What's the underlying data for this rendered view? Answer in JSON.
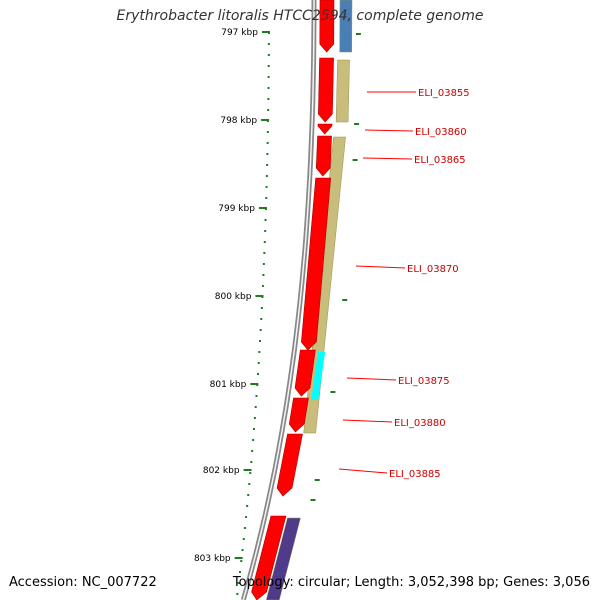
{
  "title": "Erythrobacter litoralis HTCC2594, complete genome",
  "footer": {
    "accession": "Accession: NC_007722",
    "summary": "Topology: circular; Length: 3,052,398 bp; Genes: 3,056"
  },
  "colors": {
    "backbone": "#888888",
    "gene_forward": "#ff0000",
    "gene_highlight": "#00ffff",
    "feature_tan": "#c8bd7a",
    "feature_blue": "#4a7fb5",
    "feature_purple": "#4f3a8c",
    "tick": "#1e7d1e",
    "label_line": "#ff0000",
    "label_text": "#cc0000"
  },
  "diagram_data": {
    "scale_labels": [
      "797 kbp",
      "798 kbp",
      "799 kbp",
      "800 kbp",
      "801 kbp",
      "802 kbp",
      "803 kbp"
    ],
    "gene_labels": [
      "ELI_03855",
      "ELI_03860",
      "ELI_03865",
      "ELI_03870",
      "ELI_03875",
      "ELI_03880",
      "ELI_03885"
    ]
  }
}
